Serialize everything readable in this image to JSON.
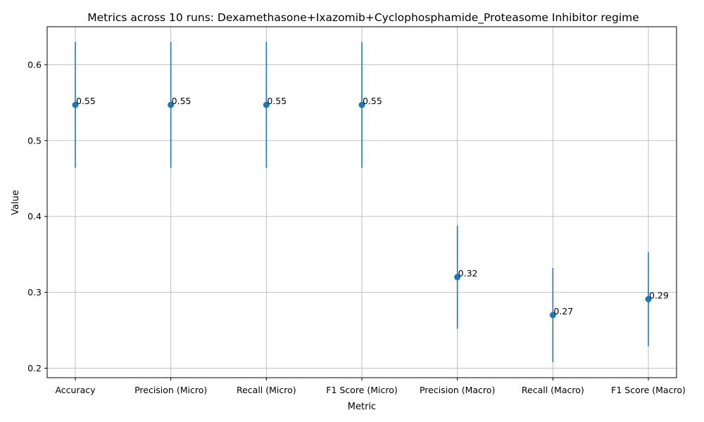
{
  "chart_data": {
    "type": "scatter",
    "title": "Metrics across 10 runs: Dexamethasone+Ixazomib+Cyclophosphamide_Proteasome Inhibitor regime",
    "xlabel": "Metric",
    "ylabel": "Value",
    "categories": [
      "Accuracy",
      "Precision (Micro)",
      "Recall (Micro)",
      "F1 Score (Micro)",
      "Precision (Macro)",
      "Recall (Macro)",
      "F1 Score (Macro)"
    ],
    "values": [
      0.547,
      0.547,
      0.547,
      0.547,
      0.32,
      0.27,
      0.291
    ],
    "error_low": [
      0.464,
      0.464,
      0.464,
      0.464,
      0.252,
      0.208,
      0.229
    ],
    "error_high": [
      0.63,
      0.63,
      0.63,
      0.63,
      0.388,
      0.332,
      0.353
    ],
    "data_labels": [
      "0.55",
      "0.55",
      "0.55",
      "0.55",
      "0.32",
      "0.27",
      "0.29"
    ],
    "yticks": [
      "0.2",
      "0.3",
      "0.4",
      "0.5",
      "0.6"
    ],
    "ytick_values": [
      0.2,
      0.3,
      0.4,
      0.5,
      0.6
    ],
    "ylim": [
      0.1875,
      0.65
    ],
    "grid": true,
    "marker_color": "#1f77b4"
  }
}
